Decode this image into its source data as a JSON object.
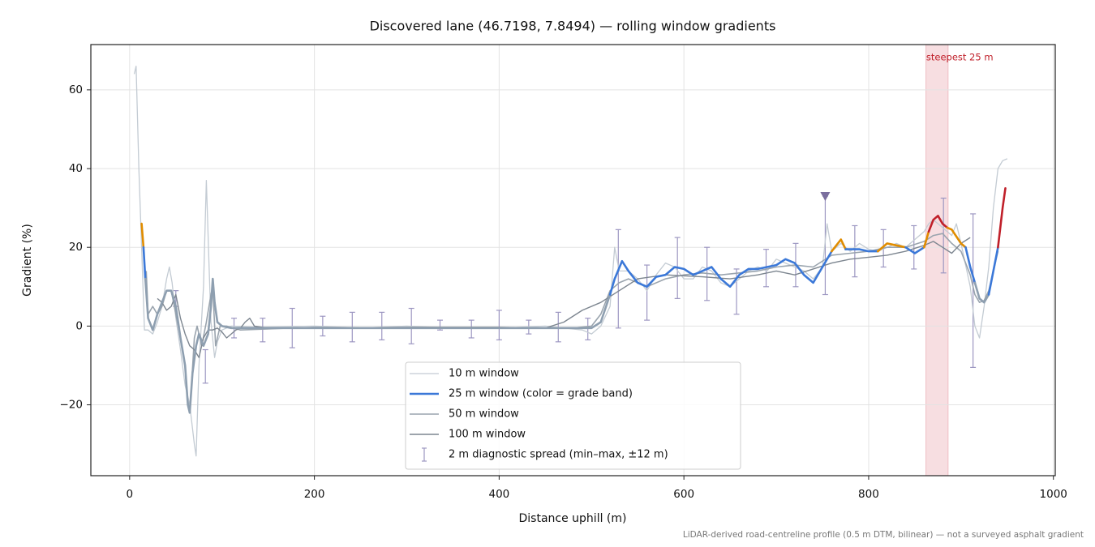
{
  "chart_data": {
    "type": "line",
    "title": "Discovered lane (46.7198, 7.8494) — rolling window gradients",
    "xlabel": "Distance uphill (m)",
    "ylabel": "Gradient (%)",
    "footnote": "LiDAR-derived road-centreline profile (0.5 m DTM, bilinear) — not a surveyed asphalt gradient",
    "xlim": [
      -42,
      1002
    ],
    "ylim": [
      -38,
      71.5
    ],
    "xticks": [
      0,
      200,
      400,
      600,
      800,
      1000
    ],
    "yticks": [
      {
        "value": -20,
        "label": "−20"
      },
      0,
      20,
      40,
      60
    ],
    "grid": true,
    "legend": "lower center",
    "series": [
      {
        "name": "10 m window",
        "color": "#c3cbd3",
        "width": 1.3,
        "x": [
          5,
          7,
          10,
          13,
          16,
          20,
          25,
          30,
          35,
          40,
          43,
          46,
          50,
          55,
          60,
          65,
          70,
          72,
          75,
          80,
          83,
          86,
          88,
          92,
          95,
          100,
          110,
          140,
          200,
          250,
          300,
          350,
          400,
          450,
          490,
          500,
          510,
          520,
          525,
          530,
          540,
          550,
          560,
          570,
          580,
          590,
          600,
          610,
          620,
          630,
          640,
          650,
          660,
          670,
          680,
          690,
          700,
          710,
          720,
          730,
          740,
          750,
          755,
          760,
          770,
          780,
          790,
          800,
          810,
          820,
          830,
          840,
          850,
          860,
          865,
          870,
          880,
          890,
          895,
          900,
          910,
          915,
          920,
          925,
          930,
          935,
          940,
          945,
          950
        ],
        "values": [
          64,
          66,
          40,
          20,
          -1,
          -1,
          -2,
          1,
          5,
          12,
          15,
          11,
          2,
          -6,
          -15,
          -20,
          -30,
          -33,
          -10,
          10,
          37,
          15,
          1,
          -8,
          -4,
          -1,
          0,
          -0.3,
          0,
          -0.5,
          0,
          -0.5,
          -0.5,
          0,
          -1,
          -2,
          0,
          5,
          20,
          14,
          14,
          12,
          9,
          13,
          16,
          15,
          12,
          12,
          15,
          14,
          11,
          10,
          12,
          14,
          15,
          14,
          17,
          16,
          15,
          14,
          12,
          15,
          26,
          19,
          21,
          19,
          21,
          19.5,
          19,
          20,
          21,
          20,
          22,
          24,
          26,
          27,
          25,
          23,
          26,
          21,
          10,
          0,
          -3,
          5,
          15,
          30,
          40,
          42,
          42.5
        ]
      },
      {
        "name": "25 m window (color = grade band)",
        "color": "#3b78d8",
        "width": 2.6,
        "band_limits": [
          10,
          20,
          25
        ],
        "band_colors": [
          "#8e9fb0",
          "#3b78d8",
          "#e08c00",
          "#c0202a"
        ],
        "x": [
          13,
          15,
          17,
          20,
          25,
          30,
          35,
          40,
          45,
          50,
          55,
          60,
          63,
          65,
          68,
          72,
          75,
          80,
          85,
          88,
          90,
          92,
          95,
          100,
          110,
          200,
          300,
          400,
          500,
          510,
          520,
          525,
          533,
          540,
          550,
          560,
          570,
          580,
          590,
          600,
          610,
          620,
          630,
          640,
          650,
          660,
          670,
          680,
          690,
          700,
          710,
          720,
          730,
          740,
          750,
          760,
          770,
          775,
          790,
          800,
          810,
          820,
          830,
          840,
          850,
          860,
          865,
          870,
          875,
          880,
          885,
          890,
          900,
          905,
          910,
          915,
          920,
          925,
          930,
          935,
          940,
          945,
          948
        ],
        "values": [
          26,
          20,
          12,
          2,
          -1,
          3,
          6,
          9,
          9,
          5,
          -3,
          -10,
          -20,
          -22,
          -12,
          -5,
          -2,
          -5,
          -2,
          5,
          12,
          6,
          1,
          0,
          -0.5,
          -0.5,
          -0.5,
          -0.5,
          -0.5,
          1,
          8,
          12,
          16.5,
          14,
          11,
          10,
          12.5,
          13,
          15,
          14.5,
          13,
          14,
          15,
          12,
          10,
          13,
          14.5,
          14.5,
          15,
          15.5,
          17,
          16,
          13,
          11,
          15,
          19,
          22,
          19.5,
          19.5,
          19,
          19,
          21,
          20.5,
          20,
          18.5,
          20,
          24,
          27,
          28,
          26,
          25,
          24.5,
          21,
          20,
          15,
          11,
          7,
          6,
          8,
          14,
          20,
          30,
          35
        ]
      },
      {
        "name": "50 m window",
        "color": "#9aa4ae",
        "width": 1.6,
        "x": [
          18,
          20,
          25,
          30,
          35,
          40,
          45,
          50,
          55,
          60,
          63,
          65,
          67,
          70,
          73,
          78,
          83,
          88,
          90,
          93,
          98,
          105,
          120,
          200,
          300,
          400,
          480,
          500,
          510,
          520,
          530,
          540,
          560,
          580,
          600,
          620,
          640,
          660,
          680,
          700,
          720,
          740,
          760,
          780,
          800,
          820,
          840,
          860,
          870,
          880,
          890,
          900,
          910,
          915,
          920,
          925,
          930,
          940
        ],
        "values": [
          14,
          3,
          5,
          3,
          5,
          9,
          9,
          3,
          -3,
          -10,
          -19,
          -22,
          -15,
          -3,
          0,
          -5,
          1,
          8,
          10,
          -5,
          0,
          0,
          -1,
          -0.3,
          -0.5,
          -0.5,
          -0.5,
          0,
          3,
          9,
          11,
          12,
          10,
          12,
          13,
          13.5,
          13,
          13.5,
          14,
          15,
          15.5,
          15,
          18,
          18.5,
          19,
          20,
          20,
          21.5,
          23,
          23.5,
          21,
          19,
          13,
          8,
          6,
          6.5,
          9,
          19
        ]
      },
      {
        "name": "100 m window",
        "color": "#7d8690",
        "width": 1.4,
        "x": [
          30,
          35,
          40,
          45,
          50,
          55,
          60,
          65,
          70,
          75,
          80,
          85,
          90,
          95,
          100,
          105,
          110,
          115,
          120,
          125,
          130,
          135,
          150,
          200,
          300,
          400,
          450,
          470,
          490,
          510,
          530,
          550,
          580,
          620,
          650,
          680,
          700,
          720,
          740,
          760,
          780,
          800,
          820,
          840,
          860,
          870,
          880,
          890,
          900,
          910
        ],
        "values": [
          7,
          6,
          4,
          5,
          8,
          2,
          -2,
          -5,
          -6,
          -8,
          -3,
          -1,
          -1,
          -0.5,
          -1.5,
          -3,
          -2,
          -1,
          -0.5,
          1,
          2,
          0,
          -0.5,
          -0.5,
          -0.3,
          -0.3,
          -0.5,
          1,
          4,
          6,
          9,
          12,
          13,
          12.5,
          12,
          13,
          14,
          13,
          14.5,
          16,
          17,
          17.5,
          18,
          19,
          20.5,
          21.5,
          20,
          18.5,
          21,
          22.5
        ]
      }
    ],
    "errorbars": {
      "name": "2 m diagnostic spread (min–max, ±12 m)",
      "color": "#9d97c2",
      "x": [
        50,
        82,
        113,
        144,
        176,
        209,
        241,
        273,
        305,
        336,
        370,
        400,
        432,
        464,
        496,
        529,
        560,
        593,
        625,
        657,
        689,
        721,
        753,
        785,
        816,
        849,
        881,
        913
      ],
      "low": [
        5,
        -14.5,
        -3,
        -4,
        -5.5,
        -2.5,
        -4,
        -3.5,
        -4.5,
        -1,
        -3,
        -3.5,
        -2,
        -4,
        -3.5,
        -0.5,
        1.5,
        7,
        6.5,
        3,
        10,
        10,
        8,
        12.5,
        15,
        14.5,
        13.5,
        -10.5
      ],
      "high": [
        9,
        -6,
        2,
        2,
        4.5,
        2.5,
        3.5,
        3.5,
        4.5,
        1.5,
        1.5,
        4,
        1.5,
        3.5,
        2,
        24.5,
        15.5,
        22.5,
        20,
        14.5,
        19.5,
        21,
        33,
        25.5,
        24.5,
        25.5,
        32.5,
        28.5
      ]
    },
    "highlight": {
      "x": [
        862,
        886
      ],
      "color": "#e8a0a8",
      "label": "steepest 25 m",
      "label_color": "#c0202a"
    },
    "marker": {
      "x": 753,
      "y": 33,
      "color": "#7a6e9e"
    }
  }
}
